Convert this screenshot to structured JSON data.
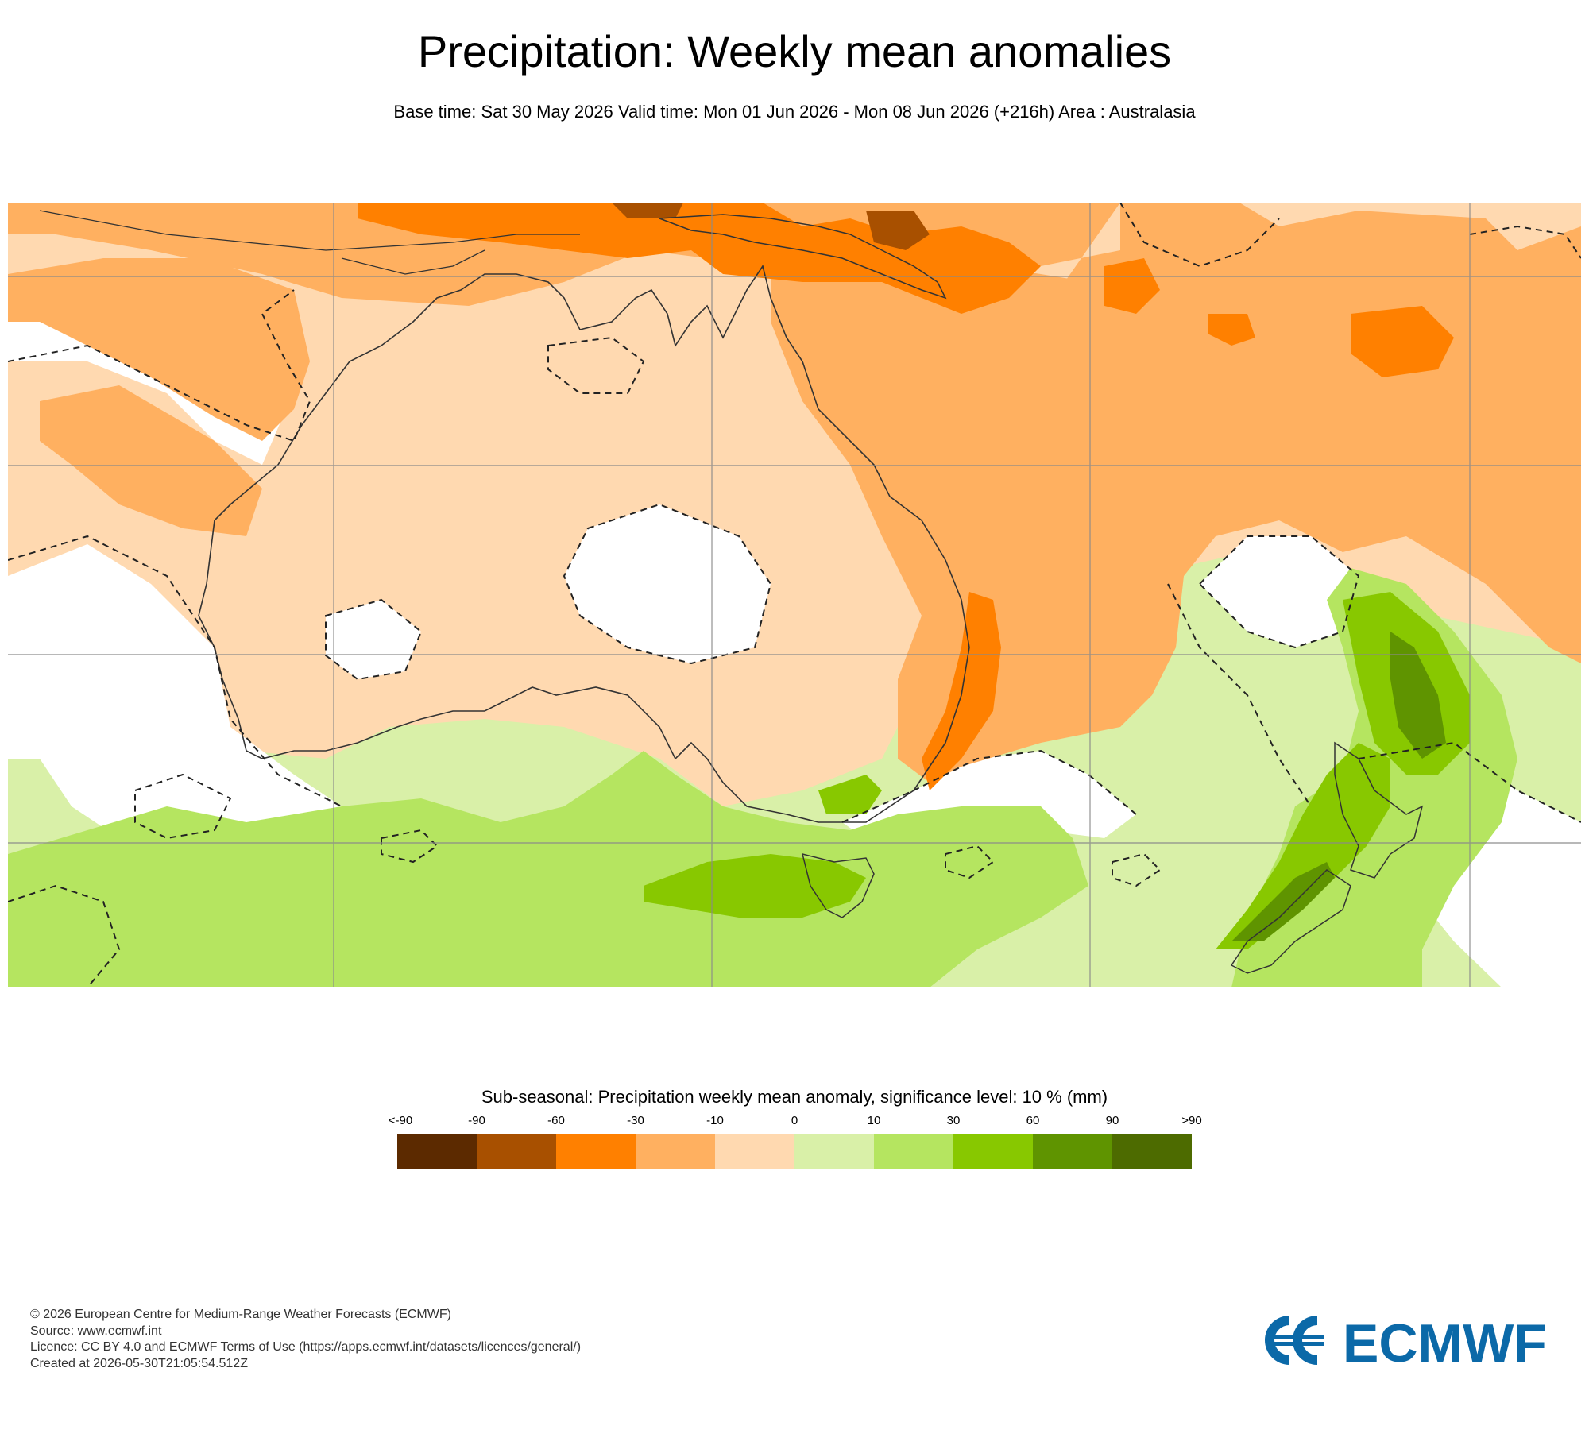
{
  "header": {
    "title": "Precipitation: Weekly mean anomalies",
    "subtitle": "Base time: Sat 30 May 2026 Valid time: Mon 01 Jun 2026 - Mon 08 Jun 2026 (+216h) Area : Australasia"
  },
  "map": {
    "area": "Australasia",
    "field": "precipitation weekly mean anomaly",
    "significance_contour": "dashed black",
    "gridlines": true
  },
  "legend": {
    "title": "Sub-seasonal: Precipitation weekly mean anomaly, significance level: 10 % (mm)",
    "ticks": [
      "<-90",
      "-90",
      "-60",
      "-30",
      "-10",
      "0",
      "10",
      "30",
      "60",
      "90",
      ">90"
    ],
    "colors": [
      "#5c2a00",
      "#a85000",
      "#ff8000",
      "#ffb060",
      "#ffd9b0",
      "#d9f0a8",
      "#b5e560",
      "#88c800",
      "#5f9400",
      "#4d6b00"
    ]
  },
  "footer": {
    "line1": "© 2026 European Centre for Medium-Range Weather Forecasts (ECMWF)",
    "line2": "Source: www.ecmwf.int",
    "line3": "Licence: CC BY 4.0 and ECMWF Terms of Use (https://apps.ecmwf.int/datasets/licences/general/)",
    "line4": "Created at 2026-05-30T21:05:54.512Z"
  },
  "logo": {
    "text": "ECMWF",
    "color": "#0b69a8"
  }
}
